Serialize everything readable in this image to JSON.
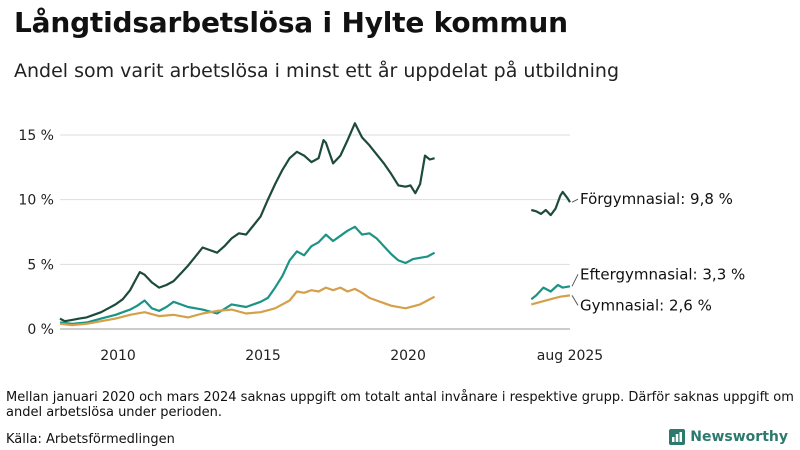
{
  "header": {
    "title": "Långtidsarbetslösa i Hylte kommun",
    "subtitle": "Andel som varit arbetslösa i minst ett år uppdelat på utbildning"
  },
  "footer": {
    "note": "Mellan januari 2020 och mars 2024 saknas uppgift om totalt antal invånare i respektive grupp. Därför saknas uppgift om andel arbetslösa under perioden.",
    "source": "Källa: Arbetsförmedlingen",
    "brand": "Newsworthy",
    "brand_icon": "bar-chart-logo-icon"
  },
  "chart_data": {
    "type": "line",
    "y_unit": "percent",
    "ylim": [
      0,
      16
    ],
    "y_ticks": [
      0,
      5,
      10,
      15
    ],
    "y_tick_labels": [
      "0 %",
      "5 %",
      "10 %",
      "15 %"
    ],
    "x_tick_labels": [
      "2010",
      "2015",
      "2020",
      "aug 2025"
    ],
    "x_tick_positions": [
      "2010-01",
      "2015-01",
      "2020-01",
      "2025-08"
    ],
    "xlim": [
      "2008-01",
      "2025-08"
    ],
    "grid": true,
    "gap": [
      "2021-01",
      "2024-03"
    ],
    "series": [
      {
        "name": "Förgymnasial",
        "end_label": "Förgymnasial: 9,8 %",
        "color": "#1e4a3c",
        "points": [
          [
            "2008-01",
            0.8
          ],
          [
            "2008-03",
            0.6
          ],
          [
            "2008-06",
            0.7
          ],
          [
            "2008-09",
            0.8
          ],
          [
            "2008-12",
            0.9
          ],
          [
            "2009-03",
            1.1
          ],
          [
            "2009-06",
            1.3
          ],
          [
            "2009-09",
            1.6
          ],
          [
            "2009-12",
            1.9
          ],
          [
            "2010-03",
            2.3
          ],
          [
            "2010-06",
            3.0
          ],
          [
            "2010-08",
            3.7
          ],
          [
            "2010-10",
            4.4
          ],
          [
            "2010-12",
            4.2
          ],
          [
            "2011-03",
            3.6
          ],
          [
            "2011-06",
            3.2
          ],
          [
            "2011-09",
            3.4
          ],
          [
            "2011-12",
            3.7
          ],
          [
            "2012-03",
            4.3
          ],
          [
            "2012-06",
            4.9
          ],
          [
            "2012-09",
            5.6
          ],
          [
            "2012-12",
            6.3
          ],
          [
            "2013-03",
            6.1
          ],
          [
            "2013-06",
            5.9
          ],
          [
            "2013-09",
            6.4
          ],
          [
            "2013-12",
            7.0
          ],
          [
            "2014-03",
            7.4
          ],
          [
            "2014-06",
            7.3
          ],
          [
            "2014-09",
            8.0
          ],
          [
            "2014-12",
            8.7
          ],
          [
            "2015-03",
            10.0
          ],
          [
            "2015-06",
            11.2
          ],
          [
            "2015-09",
            12.3
          ],
          [
            "2015-12",
            13.2
          ],
          [
            "2016-03",
            13.7
          ],
          [
            "2016-06",
            13.4
          ],
          [
            "2016-09",
            12.9
          ],
          [
            "2016-12",
            13.2
          ],
          [
            "2017-02",
            14.6
          ],
          [
            "2017-03",
            14.4
          ],
          [
            "2017-06",
            12.8
          ],
          [
            "2017-09",
            13.4
          ],
          [
            "2017-12",
            14.6
          ],
          [
            "2018-03",
            15.9
          ],
          [
            "2018-06",
            14.8
          ],
          [
            "2018-09",
            14.2
          ],
          [
            "2018-12",
            13.5
          ],
          [
            "2019-03",
            12.8
          ],
          [
            "2019-06",
            12.0
          ],
          [
            "2019-09",
            11.1
          ],
          [
            "2019-12",
            11.0
          ],
          [
            "2020-02",
            11.1
          ],
          [
            "2020-04",
            10.5
          ],
          [
            "2020-06",
            11.2
          ],
          [
            "2020-08",
            13.4
          ],
          [
            "2020-10",
            13.1
          ],
          [
            "2020-12",
            13.2
          ],
          [
            "2024-04",
            9.2
          ],
          [
            "2024-06",
            9.1
          ],
          [
            "2024-08",
            8.9
          ],
          [
            "2024-10",
            9.2
          ],
          [
            "2024-12",
            8.8
          ],
          [
            "2025-02",
            9.3
          ],
          [
            "2025-04",
            10.3
          ],
          [
            "2025-05",
            10.6
          ],
          [
            "2025-07",
            10.1
          ],
          [
            "2025-08",
            9.8
          ]
        ]
      },
      {
        "name": "Eftergymnasial",
        "end_label": "Eftergymnasial: 3,3 %",
        "color": "#1b9485",
        "points": [
          [
            "2008-01",
            0.5
          ],
          [
            "2008-06",
            0.4
          ],
          [
            "2008-12",
            0.5
          ],
          [
            "2009-06",
            0.8
          ],
          [
            "2009-12",
            1.1
          ],
          [
            "2010-06",
            1.5
          ],
          [
            "2010-09",
            1.8
          ],
          [
            "2010-12",
            2.2
          ],
          [
            "2011-03",
            1.6
          ],
          [
            "2011-06",
            1.4
          ],
          [
            "2011-09",
            1.7
          ],
          [
            "2011-12",
            2.1
          ],
          [
            "2012-06",
            1.7
          ],
          [
            "2012-12",
            1.5
          ],
          [
            "2013-06",
            1.2
          ],
          [
            "2013-12",
            1.9
          ],
          [
            "2014-06",
            1.7
          ],
          [
            "2014-12",
            2.1
          ],
          [
            "2015-03",
            2.4
          ],
          [
            "2015-06",
            3.2
          ],
          [
            "2015-09",
            4.1
          ],
          [
            "2015-12",
            5.3
          ],
          [
            "2016-03",
            6.0
          ],
          [
            "2016-06",
            5.7
          ],
          [
            "2016-09",
            6.4
          ],
          [
            "2016-12",
            6.7
          ],
          [
            "2017-03",
            7.3
          ],
          [
            "2017-06",
            6.8
          ],
          [
            "2017-09",
            7.2
          ],
          [
            "2017-12",
            7.6
          ],
          [
            "2018-03",
            7.9
          ],
          [
            "2018-06",
            7.3
          ],
          [
            "2018-09",
            7.4
          ],
          [
            "2018-12",
            7.0
          ],
          [
            "2019-03",
            6.4
          ],
          [
            "2019-06",
            5.8
          ],
          [
            "2019-09",
            5.3
          ],
          [
            "2019-12",
            5.1
          ],
          [
            "2020-03",
            5.4
          ],
          [
            "2020-06",
            5.5
          ],
          [
            "2020-09",
            5.6
          ],
          [
            "2020-12",
            5.9
          ],
          [
            "2024-04",
            2.3
          ],
          [
            "2024-06",
            2.6
          ],
          [
            "2024-09",
            3.2
          ],
          [
            "2024-12",
            2.9
          ],
          [
            "2025-03",
            3.4
          ],
          [
            "2025-05",
            3.2
          ],
          [
            "2025-08",
            3.3
          ]
        ]
      },
      {
        "name": "Gymnasial",
        "end_label": "Gymnasial: 2,6 %",
        "color": "#d4a04a",
        "points": [
          [
            "2008-01",
            0.4
          ],
          [
            "2008-06",
            0.3
          ],
          [
            "2008-12",
            0.4
          ],
          [
            "2009-06",
            0.6
          ],
          [
            "2009-12",
            0.8
          ],
          [
            "2010-06",
            1.1
          ],
          [
            "2010-12",
            1.3
          ],
          [
            "2011-06",
            1.0
          ],
          [
            "2011-12",
            1.1
          ],
          [
            "2012-06",
            0.9
          ],
          [
            "2012-12",
            1.2
          ],
          [
            "2013-06",
            1.4
          ],
          [
            "2013-12",
            1.5
          ],
          [
            "2014-06",
            1.2
          ],
          [
            "2014-12",
            1.3
          ],
          [
            "2015-06",
            1.6
          ],
          [
            "2015-12",
            2.2
          ],
          [
            "2016-03",
            2.9
          ],
          [
            "2016-06",
            2.8
          ],
          [
            "2016-09",
            3.0
          ],
          [
            "2016-12",
            2.9
          ],
          [
            "2017-03",
            3.2
          ],
          [
            "2017-06",
            3.0
          ],
          [
            "2017-09",
            3.2
          ],
          [
            "2017-12",
            2.9
          ],
          [
            "2018-03",
            3.1
          ],
          [
            "2018-06",
            2.8
          ],
          [
            "2018-09",
            2.4
          ],
          [
            "2018-12",
            2.2
          ],
          [
            "2019-06",
            1.8
          ],
          [
            "2019-12",
            1.6
          ],
          [
            "2020-06",
            1.9
          ],
          [
            "2020-09",
            2.2
          ],
          [
            "2020-12",
            2.5
          ],
          [
            "2024-04",
            1.9
          ],
          [
            "2024-08",
            2.1
          ],
          [
            "2024-12",
            2.3
          ],
          [
            "2025-04",
            2.5
          ],
          [
            "2025-08",
            2.6
          ]
        ]
      }
    ]
  }
}
